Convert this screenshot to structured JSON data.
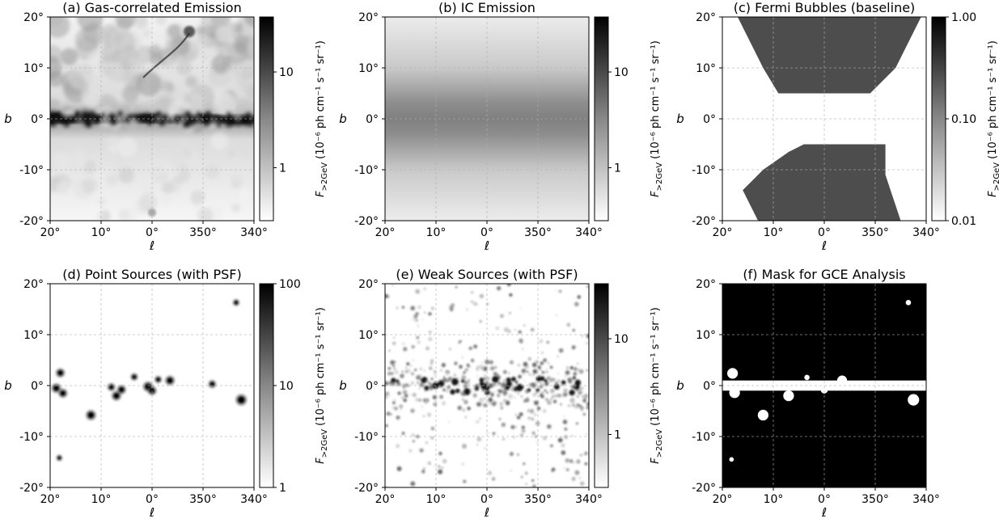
{
  "figure": {
    "description_labels": {
      "x_axis_symbol": "ℓ",
      "y_axis_symbol": "b"
    }
  },
  "chart_data": [
    {
      "type": "heatmap",
      "id": "a",
      "title": "(a) Gas-correlated Emission",
      "xlabel": "ℓ",
      "ylabel": "b",
      "xticks": [
        "20°",
        "10°",
        "0°",
        "350°",
        "340°"
      ],
      "yticks": [
        "20°",
        "10°",
        "0°",
        "-10°",
        "-20°"
      ],
      "xlim_deg": [
        20,
        -20
      ],
      "ylim_deg": [
        -20,
        20
      ],
      "colorbar": {
        "label_main": "F",
        "label_sub": ">2GeV",
        "label_units": "(10⁻⁶ ph cm⁻¹ s⁻¹ sr⁻¹)",
        "scale": "log",
        "ticks": [
          "10",
          "1"
        ]
      },
      "map": "gas"
    },
    {
      "type": "heatmap",
      "id": "b",
      "title": "(b) IC Emission",
      "xlabel": "ℓ",
      "ylabel": "b",
      "xticks": [
        "20°",
        "10°",
        "0°",
        "350°",
        "340°"
      ],
      "yticks": [
        "20°",
        "10°",
        "0°",
        "-10°",
        "-20°"
      ],
      "xlim_deg": [
        20,
        -20
      ],
      "ylim_deg": [
        -20,
        20
      ],
      "colorbar": {
        "label_main": "F",
        "label_sub": ">2GeV",
        "label_units": "(10⁻⁶ ph cm⁻¹ s⁻¹ sr⁻¹)",
        "scale": "log",
        "ticks": [
          "10",
          "1"
        ]
      },
      "map": "ic"
    },
    {
      "type": "heatmap",
      "id": "c",
      "title": "(c) Fermi Bubbles (baseline)",
      "xlabel": "ℓ",
      "ylabel": "b",
      "xticks": [
        "20°",
        "10°",
        "0°",
        "350°",
        "340°"
      ],
      "yticks": [
        "20°",
        "10°",
        "0°",
        "-10°",
        "-20°"
      ],
      "xlim_deg": [
        20,
        -20
      ],
      "ylim_deg": [
        -20,
        20
      ],
      "colorbar": {
        "label_main": "F",
        "label_sub": ">2GeV",
        "label_units": "(10⁻⁶ ph cm⁻¹ s⁻¹ sr⁻¹)",
        "scale": "log",
        "ticks": [
          "1.00",
          "0.10",
          "0.01"
        ]
      },
      "map": "bubbles",
      "regions": [
        {
          "name": "northern bubble",
          "polygon_deg": [
            [
              17,
              20
            ],
            [
              12,
              10
            ],
            [
              9,
              5
            ],
            [
              -9,
              5
            ],
            [
              -14,
              10
            ],
            [
              -19,
              20
            ]
          ]
        },
        {
          "name": "southern bubble",
          "polygon_deg": [
            [
              4,
              -5
            ],
            [
              -12,
              -5
            ],
            [
              -12,
              -11
            ],
            [
              -13,
              -14
            ],
            [
              -15,
              -20
            ],
            [
              13,
              -20
            ],
            [
              16,
              -14
            ],
            [
              12,
              -10
            ],
            [
              7,
              -6.5
            ]
          ]
        }
      ]
    },
    {
      "type": "heatmap",
      "id": "d",
      "title": "(d) Point Sources (with PSF)",
      "xlabel": "ℓ",
      "ylabel": "b",
      "xticks": [
        "20°",
        "10°",
        "0°",
        "350°",
        "340°"
      ],
      "yticks": [
        "20°",
        "10°",
        "0°",
        "-10°",
        "-20°"
      ],
      "xlim_deg": [
        20,
        -20
      ],
      "ylim_deg": [
        -20,
        20
      ],
      "colorbar": {
        "label_main": "F",
        "label_sub": ">2GeV",
        "label_units": "(10⁻⁶ ph cm⁻¹ s⁻¹ sr⁻¹)",
        "scale": "log",
        "ticks": [
          "100",
          "10",
          "1"
        ]
      },
      "map": "points",
      "sources_deg": [
        {
          "l": 18.0,
          "b": 2.5,
          "strength": 0.8
        },
        {
          "l": 18.8,
          "b": -0.5,
          "strength": 0.9
        },
        {
          "l": 17.5,
          "b": -1.5,
          "strength": 0.8
        },
        {
          "l": 12.0,
          "b": -5.8,
          "strength": 1.0
        },
        {
          "l": 8.0,
          "b": -0.3,
          "strength": 0.6
        },
        {
          "l": 7.0,
          "b": -2.0,
          "strength": 0.9
        },
        {
          "l": 6.0,
          "b": -0.8,
          "strength": 0.8
        },
        {
          "l": 3.5,
          "b": 1.7,
          "strength": 0.5
        },
        {
          "l": 0.8,
          "b": -0.2,
          "strength": 1.0
        },
        {
          "l": 0.0,
          "b": -1.0,
          "strength": 0.8
        },
        {
          "l": -1.2,
          "b": 1.2,
          "strength": 0.5
        },
        {
          "l": -3.5,
          "b": 1.0,
          "strength": 0.9
        },
        {
          "l": -11.8,
          "b": 0.3,
          "strength": 0.6
        },
        {
          "l": -16.5,
          "b": 16.3,
          "strength": 0.4
        },
        {
          "l": -17.5,
          "b": -2.8,
          "strength": 1.2
        },
        {
          "l": 18.2,
          "b": -14.2,
          "strength": 0.3
        }
      ]
    },
    {
      "type": "heatmap",
      "id": "e",
      "title": "(e) Weak Sources (with PSF)",
      "xlabel": "ℓ",
      "ylabel": "b",
      "xticks": [
        "20°",
        "10°",
        "0°",
        "350°",
        "340°"
      ],
      "yticks": [
        "20°",
        "10°",
        "0°",
        "-10°",
        "-20°"
      ],
      "xlim_deg": [
        20,
        -20
      ],
      "ylim_deg": [
        -20,
        20
      ],
      "colorbar": {
        "label_main": "F",
        "label_sub": ">2GeV",
        "label_units": "(10⁻⁶ ph cm⁻¹ s⁻¹ sr⁻¹)",
        "scale": "log",
        "ticks": [
          "10",
          "1"
        ]
      },
      "map": "weak"
    },
    {
      "type": "heatmap",
      "id": "f",
      "title": "(f) Mask for GCE Analysis",
      "xlabel": "ℓ",
      "ylabel": "b",
      "xticks": [
        "20°",
        "10°",
        "0°",
        "350°",
        "340°"
      ],
      "yticks": [
        "20°",
        "10°",
        "0°",
        "-10°",
        "-20°"
      ],
      "xlim_deg": [
        20,
        -20
      ],
      "ylim_deg": [
        -20,
        20
      ],
      "map": "mask",
      "band_halfwidth_deg": 1.0,
      "masked_disks_deg": [
        {
          "l": 18.0,
          "b": 2.4,
          "r": 0.7
        },
        {
          "l": 17.6,
          "b": -1.4,
          "r": 0.7
        },
        {
          "l": 12.0,
          "b": -5.8,
          "r": 0.7
        },
        {
          "l": 7.0,
          "b": -2.0,
          "r": 0.7
        },
        {
          "l": 3.4,
          "b": 1.6,
          "r": 0.35
        },
        {
          "l": 0.0,
          "b": -0.9,
          "r": 0.45
        },
        {
          "l": -3.5,
          "b": 1.0,
          "r": 0.65
        },
        {
          "l": -16.5,
          "b": 16.3,
          "r": 0.35
        },
        {
          "l": -17.5,
          "b": -2.8,
          "r": 0.75
        },
        {
          "l": 18.2,
          "b": -14.5,
          "r": 0.3
        }
      ]
    }
  ]
}
